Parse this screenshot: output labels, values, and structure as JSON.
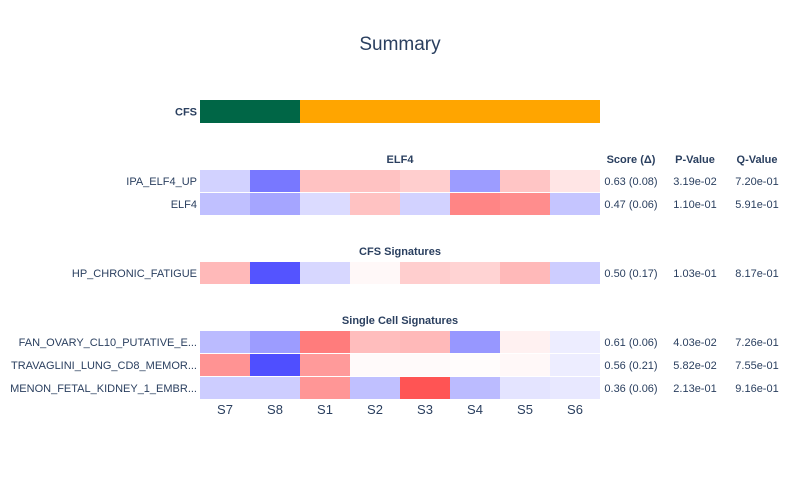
{
  "chart_data": {
    "type": "heatmap",
    "title": "Summary",
    "columns": [
      "S7",
      "S8",
      "S1",
      "S2",
      "S3",
      "S4",
      "S5",
      "S6"
    ],
    "stat_headers": [
      "Score (Δ)",
      "P-Value",
      "Q-Value"
    ],
    "annotation": {
      "label": "CFS",
      "groups": [
        {
          "color": "#006646",
          "columns": [
            "S7",
            "S8"
          ]
        },
        {
          "color": "#ffa500",
          "columns": [
            "S1",
            "S2",
            "S3",
            "S4",
            "S5",
            "S6"
          ]
        }
      ]
    },
    "colorscale": {
      "negative": "#4b4bff",
      "neutral": "#ffffff",
      "positive": "#ff5050",
      "range": [
        -1,
        1
      ]
    },
    "sections": [
      {
        "title": "ELF4",
        "rows": [
          {
            "label": "IPA_ELF4_UP",
            "values": [
              -0.25,
              -0.75,
              0.35,
              0.35,
              0.28,
              -0.55,
              0.33,
              0.15
            ],
            "score": "0.63 (0.08)",
            "pvalue": "3.19e-02",
            "qvalue": "7.20e-01"
          },
          {
            "label": "ELF4",
            "values": [
              -0.35,
              -0.5,
              -0.2,
              0.35,
              -0.25,
              0.7,
              0.65,
              -0.32
            ],
            "score": "0.47 (0.06)",
            "pvalue": "1.10e-01",
            "qvalue": "5.91e-01"
          }
        ]
      },
      {
        "title": "CFS Signatures",
        "rows": [
          {
            "label": "HP_CHRONIC_FATIGUE",
            "values": [
              0.4,
              -0.95,
              -0.22,
              0.04,
              0.28,
              0.25,
              0.4,
              -0.28
            ],
            "score": "0.50 (0.17)",
            "pvalue": "1.03e-01",
            "qvalue": "8.17e-01"
          }
        ]
      },
      {
        "title": "Single Cell Signatures",
        "rows": [
          {
            "label": "FAN_OVARY_CL10_PUTATIVE_E...",
            "values": [
              -0.38,
              -0.55,
              0.75,
              0.38,
              0.4,
              -0.58,
              0.08,
              -0.1
            ],
            "score": "0.61 (0.06)",
            "pvalue": "4.03e-02",
            "qvalue": "7.26e-01"
          },
          {
            "label": "TRAVAGLINI_LUNG_CD8_MEMOR...",
            "values": [
              0.62,
              -0.98,
              0.58,
              0.03,
              0.03,
              0.02,
              0.04,
              -0.1
            ],
            "score": "0.56 (0.21)",
            "pvalue": "5.82e-02",
            "qvalue": "7.55e-01"
          },
          {
            "label": "MENON_FETAL_KIDNEY_1_EMBR...",
            "values": [
              -0.28,
              -0.28,
              0.6,
              -0.35,
              0.98,
              -0.38,
              -0.15,
              -0.13
            ],
            "score": "0.36 (0.06)",
            "pvalue": "2.13e-01",
            "qvalue": "9.16e-01"
          }
        ]
      }
    ]
  }
}
